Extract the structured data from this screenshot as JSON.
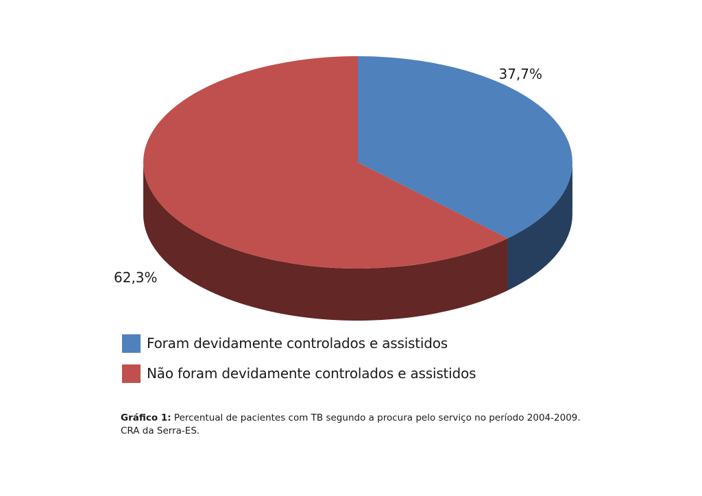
{
  "chart_data": {
    "type": "pie",
    "style": "3d",
    "slices": [
      {
        "label": "Foram devidamente controlados e assistidos",
        "value": 37.7,
        "display": "37,7%",
        "color": "#4F81BD",
        "side_color": "#263F5E"
      },
      {
        "label": "Não foram devidamente controlados e assistidos",
        "value": 62.3,
        "display": "62,3%",
        "color": "#C0504D",
        "side_color": "#632726"
      }
    ],
    "legend_position": "bottom-left"
  },
  "caption": {
    "prefix": "Gráfico 1:",
    "text": " Percentual de pacientes com TB segundo a procura pelo serviço no período 2004-2009.",
    "line2": "CRA da Serra-ES."
  }
}
